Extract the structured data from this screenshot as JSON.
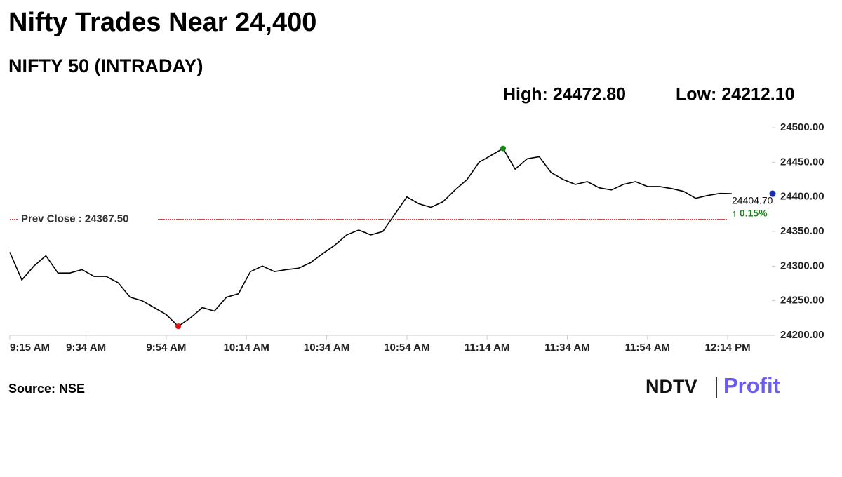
{
  "chart_data": {
    "type": "line",
    "title": "Nifty Trades Near 24,400",
    "subtitle": "NIFTY 50 (INTRADAY)",
    "stats": [
      "High: 24472.80",
      "Low: 24212.10"
    ],
    "x": [
      "9:15 AM",
      "9:18 AM",
      "9:21 AM",
      "9:24 AM",
      "9:27 AM",
      "9:30 AM",
      "9:33 AM",
      "9:36 AM",
      "9:39 AM",
      "9:42 AM",
      "9:45 AM",
      "9:48 AM",
      "9:51 AM",
      "9:54 AM",
      "9:57 AM",
      "10:00 AM",
      "10:03 AM",
      "10:06 AM",
      "10:09 AM",
      "10:12 AM",
      "10:15 AM",
      "10:18 AM",
      "10:21 AM",
      "10:24 AM",
      "10:27 AM",
      "10:30 AM",
      "10:33 AM",
      "10:36 AM",
      "10:39 AM",
      "10:42 AM",
      "10:45 AM",
      "10:48 AM",
      "10:51 AM",
      "10:54 AM",
      "10:57 AM",
      "11:00 AM",
      "11:03 AM",
      "11:06 AM",
      "11:09 AM",
      "11:12 AM",
      "11:15 AM",
      "11:18 AM",
      "11:21 AM",
      "11:24 AM",
      "11:27 AM",
      "11:30 AM",
      "11:33 AM",
      "11:36 AM",
      "11:39 AM",
      "11:42 AM",
      "11:45 AM",
      "11:48 AM",
      "11:51 AM",
      "11:54 AM",
      "11:57 AM",
      "12:00 PM",
      "12:03 PM",
      "12:06 PM",
      "12:09 PM",
      "12:12 PM",
      "12:15 PM"
    ],
    "series": [
      {
        "name": "NIFTY 50",
        "color": "#000000",
        "values": [
          24320,
          24280,
          24300,
          24315,
          24290,
          24290,
          24295,
          24285,
          24285,
          24276,
          24255,
          24250,
          24240,
          24230,
          24213,
          24225,
          24240,
          24235,
          24255,
          24260,
          24292,
          24300,
          24292,
          24295,
          24297,
          24305,
          24318,
          24330,
          24345,
          24352,
          24345,
          24350,
          24375,
          24400,
          24390,
          24385,
          24393,
          24410,
          24425,
          24450,
          24460,
          24470,
          24440,
          24455,
          24458,
          24435,
          24425,
          24418,
          24422,
          24413,
          24410,
          24418,
          24422,
          24415,
          24415,
          24412,
          24408,
          24398,
          24402,
          24405,
          24404.7
        ]
      }
    ],
    "xlim": [
      "9:15 AM",
      "12:25 PM"
    ],
    "xticks": [
      "9:15 AM",
      "9:34 AM",
      "9:54 AM",
      "10:14 AM",
      "10:34 AM",
      "10:54 AM",
      "11:14 AM",
      "11:34 AM",
      "11:54 AM",
      "12:14 PM"
    ],
    "ylim": [
      24200,
      24500
    ],
    "yticks": [
      {
        "value": 24200,
        "label": "24200.00"
      },
      {
        "value": 24250,
        "label": "24250.00"
      },
      {
        "value": 24300,
        "label": "24300.00"
      },
      {
        "value": 24350,
        "label": "24350.00"
      },
      {
        "value": 24400,
        "label": "24400.00"
      },
      {
        "value": 24450,
        "label": "24450.00"
      },
      {
        "value": 24500,
        "label": "24500.00"
      }
    ],
    "prev_close": {
      "value": 24367.5,
      "label": "Prev Close : 24367.50",
      "color": "#d00000"
    },
    "last_label": "24404.70",
    "change_label": "↑ 0.15%",
    "high_color": "#138a13",
    "low_color": "#e01010",
    "last_color": "#1a2fb0",
    "source": "Source: NSE",
    "brand": [
      "NDTV",
      "Profit"
    ]
  }
}
